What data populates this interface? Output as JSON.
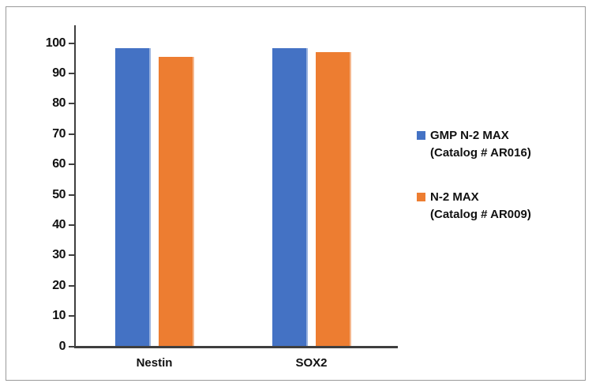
{
  "chart_data": {
    "type": "bar",
    "title": "",
    "xlabel": "",
    "ylabel": "",
    "categories": [
      "Nestin",
      "SOX2"
    ],
    "series": [
      {
        "name": "GMP N-2 MAX (Catalog # AR016)",
        "color": "#4472C4",
        "values": [
          98.2,
          98.4
        ]
      },
      {
        "name": "N-2 MAX (Catalog # AR009)",
        "color": "#ED7D31",
        "values": [
          95.4,
          96.9
        ]
      }
    ],
    "ylim": [
      0,
      100
    ],
    "yticks": [
      0,
      10,
      20,
      30,
      40,
      50,
      60,
      70,
      80,
      90,
      100
    ],
    "grid": false,
    "legend_position": "right",
    "legend": {
      "items": [
        {
          "line1": "GMP N-2 MAX",
          "line2": "(Catalog # AR016)",
          "color": "#4472C4"
        },
        {
          "line1": "N-2 MAX",
          "line2": "(Catalog # AR009)",
          "color": "#ED7D31"
        }
      ]
    },
    "axis_color": "#3f3f3f",
    "text_color": "#111111",
    "frame_border_color": "#9a9a9a"
  }
}
